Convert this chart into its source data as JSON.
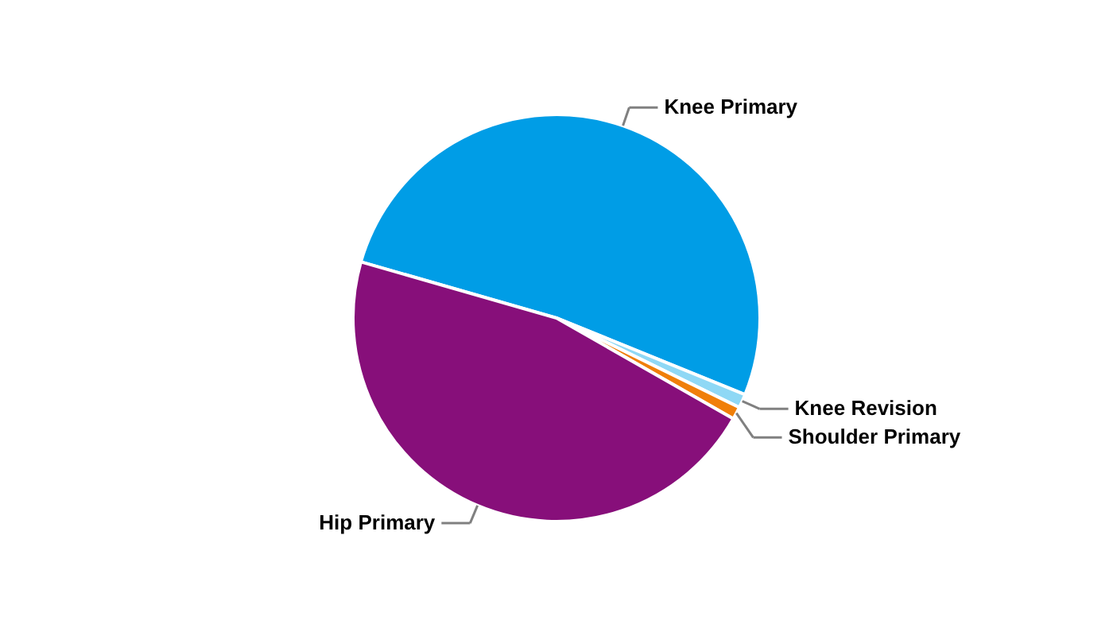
{
  "chart_data": {
    "type": "pie",
    "categories": [
      "Knee Primary",
      "Knee Revision",
      "Shoulder Primary",
      "Hip Primary"
    ],
    "values": [
      51.7,
      1.1,
      1.0,
      46.2
    ],
    "colors": [
      "#009de6",
      "#8fd8f5",
      "#f07f09",
      "#870f7a"
    ]
  }
}
